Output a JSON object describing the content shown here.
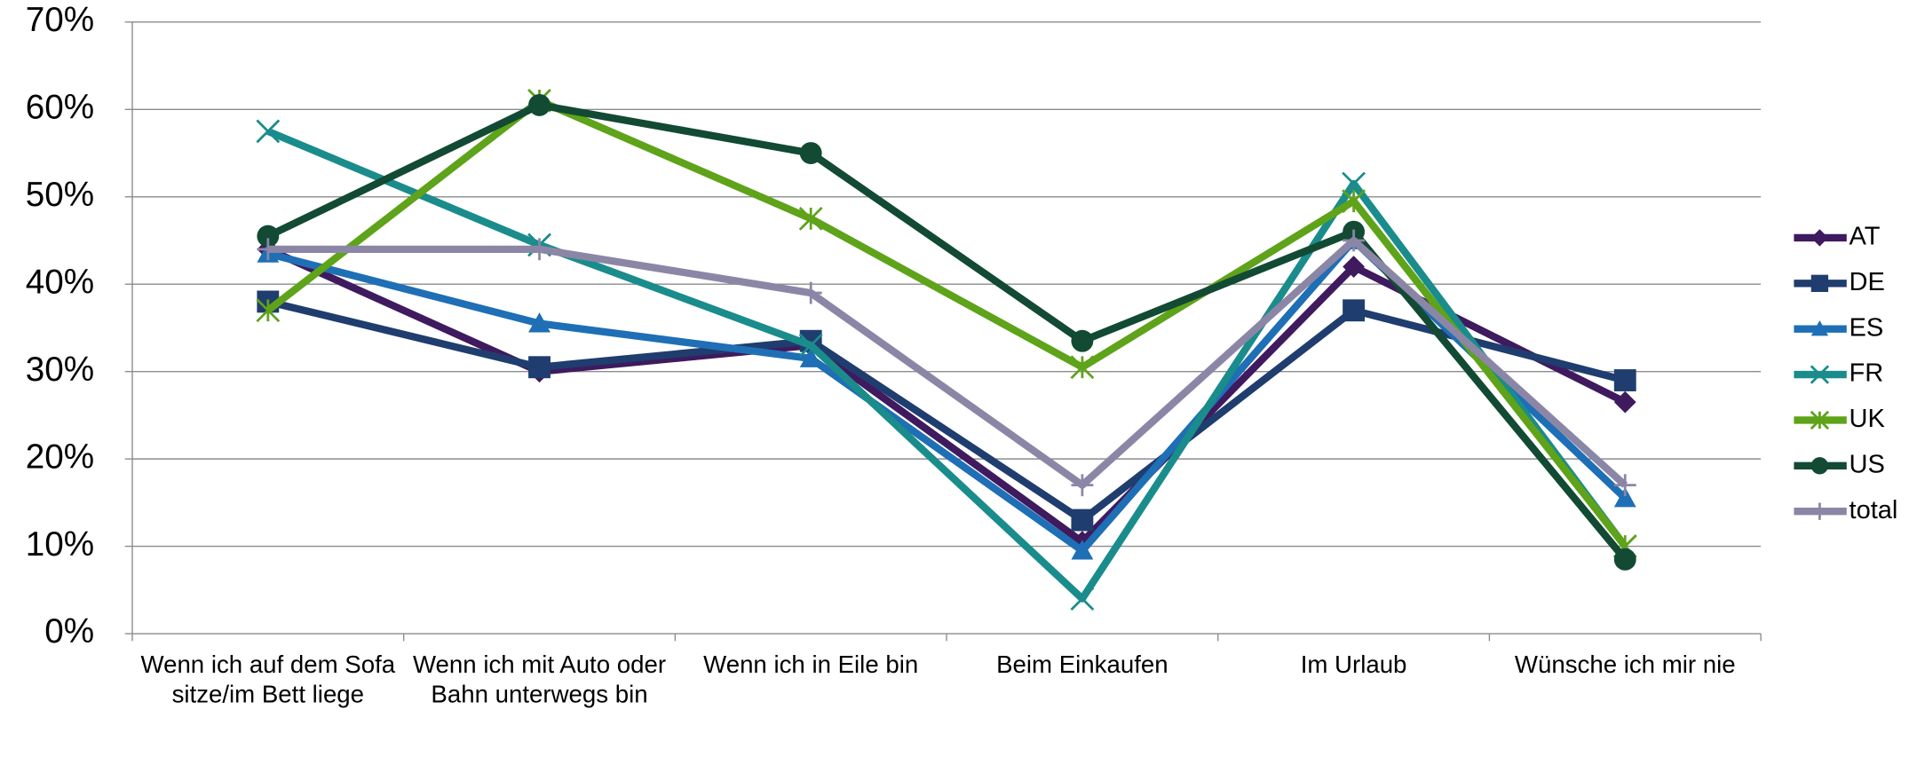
{
  "chart_data": {
    "type": "line",
    "categories": [
      "Wenn ich auf dem Sofa sitze/im Bett liege",
      "Wenn ich mit Auto oder Bahn unterwegs bin",
      "Wenn ich in Eile bin",
      "Beim Einkaufen",
      "Im Urlaub",
      "Wünsche ich mir nie"
    ],
    "series": [
      {
        "name": "AT",
        "color": "#3f1a5e",
        "marker": "diamond",
        "values": [
          44,
          30,
          33,
          10.5,
          42,
          26.5
        ]
      },
      {
        "name": "DE",
        "color": "#1f3d6e",
        "marker": "square",
        "values": [
          38,
          30.5,
          33.5,
          13,
          37,
          29
        ]
      },
      {
        "name": "ES",
        "color": "#1e6fb5",
        "marker": "triangle",
        "values": [
          43.5,
          35.5,
          31.5,
          9.5,
          45,
          15.5
        ]
      },
      {
        "name": "FR",
        "color": "#1a8c8c",
        "marker": "x",
        "values": [
          57.5,
          44.5,
          33,
          4,
          51.5,
          10
        ]
      },
      {
        "name": "UK",
        "color": "#5ea319",
        "marker": "star",
        "values": [
          37,
          61,
          47.5,
          30.5,
          49.5,
          10
        ]
      },
      {
        "name": "US",
        "color": "#124a34",
        "marker": "circle",
        "values": [
          45.5,
          60.5,
          55,
          33.5,
          46,
          8.5
        ]
      },
      {
        "name": "total",
        "color": "#8c86a6",
        "marker": "plus",
        "values": [
          44,
          44,
          39,
          17,
          45,
          17
        ]
      }
    ],
    "ylim": [
      0,
      70
    ],
    "yticks": [
      {
        "value": 0,
        "label": "0%"
      },
      {
        "value": 10,
        "label": "10%"
      },
      {
        "value": 20,
        "label": "20%"
      },
      {
        "value": 30,
        "label": "30%"
      },
      {
        "value": 40,
        "label": "40%"
      },
      {
        "value": 50,
        "label": "50%"
      },
      {
        "value": 60,
        "label": "60%"
      },
      {
        "value": 70,
        "label": "70%"
      }
    ],
    "grid": true,
    "legend": "right"
  }
}
